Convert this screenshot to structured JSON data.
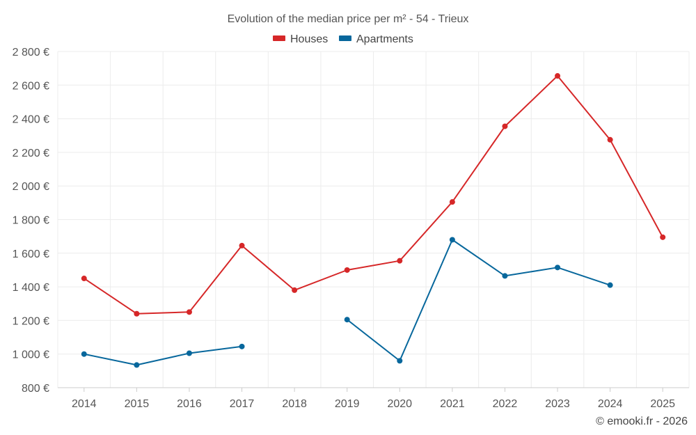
{
  "chart_data": {
    "type": "line",
    "title": "Evolution of the median price per m² - 54 - Trieux",
    "categories": [
      "2014",
      "2015",
      "2016",
      "2017",
      "2018",
      "2019",
      "2020",
      "2021",
      "2022",
      "2023",
      "2024",
      "2025"
    ],
    "series": [
      {
        "name": "Houses",
        "color": "#d62728",
        "values": [
          1450,
          1240,
          1250,
          1645,
          1380,
          1500,
          1555,
          1905,
          2355,
          2655,
          2275,
          1695
        ]
      },
      {
        "name": "Apartments",
        "color": "#07679c",
        "values": [
          1000,
          935,
          1005,
          1045,
          null,
          1205,
          960,
          1680,
          1465,
          1515,
          1410,
          null
        ]
      }
    ],
    "yticks": [
      "800 €",
      "1 000 €",
      "1 200 €",
      "1 400 €",
      "1 600 €",
      "1 800 €",
      "2 000 €",
      "2 200 €",
      "2 400 €",
      "2 600 €",
      "2 800 €"
    ],
    "ylim": [
      800,
      2800
    ],
    "xlabel": "",
    "ylabel": "",
    "legend_position": "top-center",
    "grid": true
  },
  "credit": "© emooki.fr - 2026"
}
